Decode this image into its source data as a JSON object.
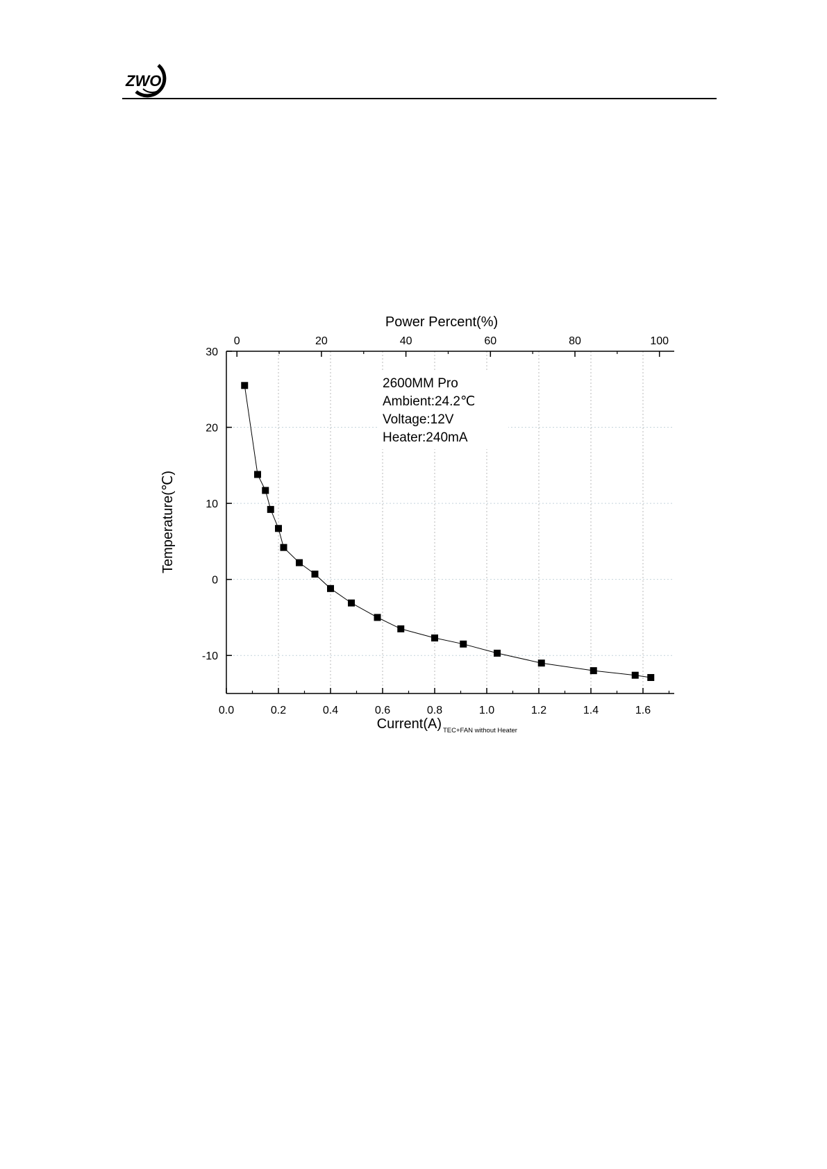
{
  "header": {
    "logo_text": "ZWO"
  },
  "chart_data": {
    "type": "scatter",
    "xlabel": "Current(A)",
    "xlabel_subscript": "TEC+FAN without Heater",
    "ylabel": "Temperature(℃)",
    "x2label": "Power Percent(%)",
    "xlim": [
      0.0,
      1.72
    ],
    "ylim": [
      -15,
      30
    ],
    "x2lim": [
      -2.5,
      103.5
    ],
    "xticks": [
      "0.0",
      "0.2",
      "0.4",
      "0.6",
      "0.8",
      "1.0",
      "1.2",
      "1.4",
      "1.6"
    ],
    "yticks": [
      "-10",
      "0",
      "10",
      "20",
      "30"
    ],
    "x2ticks": [
      "0",
      "20",
      "40",
      "60",
      "80",
      "100"
    ],
    "grid": true,
    "annotations": [
      "2600MM Pro",
      "Ambient:24.2℃",
      "Voltage:12V",
      "Heater:240mA"
    ],
    "series": [
      {
        "marker": "square",
        "connected": true,
        "color": "#000000",
        "points": [
          {
            "x": 0.07,
            "y": 25.5
          },
          {
            "x": 0.12,
            "y": 13.8
          },
          {
            "x": 0.15,
            "y": 11.7
          },
          {
            "x": 0.17,
            "y": 9.2
          },
          {
            "x": 0.2,
            "y": 6.7
          },
          {
            "x": 0.22,
            "y": 4.2
          },
          {
            "x": 0.28,
            "y": 2.2
          },
          {
            "x": 0.34,
            "y": 0.7
          },
          {
            "x": 0.4,
            "y": -1.2
          },
          {
            "x": 0.48,
            "y": -3.1
          },
          {
            "x": 0.58,
            "y": -5.0
          },
          {
            "x": 0.67,
            "y": -6.5
          },
          {
            "x": 0.8,
            "y": -7.7
          },
          {
            "x": 0.91,
            "y": -8.5
          },
          {
            "x": 1.04,
            "y": -9.7
          },
          {
            "x": 1.21,
            "y": -11.0
          },
          {
            "x": 1.41,
            "y": -12.0
          },
          {
            "x": 1.57,
            "y": -12.6
          },
          {
            "x": 1.63,
            "y": -12.9
          }
        ]
      }
    ]
  }
}
